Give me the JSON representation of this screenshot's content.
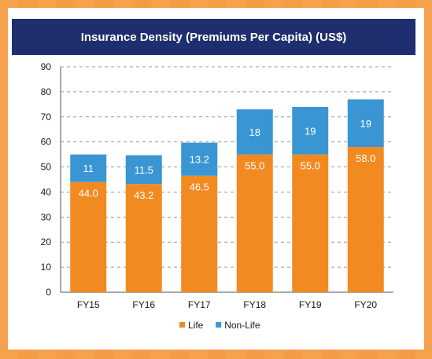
{
  "chart_data": {
    "type": "bar",
    "stacked": true,
    "title": "Insurance Density (Premiums Per Capita) (US$)",
    "categories": [
      "FY15",
      "FY16",
      "FY17",
      "FY18",
      "FY19",
      "FY20"
    ],
    "series": [
      {
        "name": "Life",
        "values": [
          44.0,
          43.2,
          46.5,
          55.0,
          55.0,
          58.0
        ],
        "labels": [
          "44.0",
          "43.2",
          "46.5",
          "55.0",
          "55.0",
          "58.0"
        ],
        "color": "#f28a22"
      },
      {
        "name": "Non-Life",
        "values": [
          11,
          11.5,
          13.2,
          18,
          19,
          19
        ],
        "labels": [
          "11",
          "11.5",
          "13.2",
          "18",
          "19",
          "19"
        ],
        "color": "#3a96d3"
      }
    ],
    "ylim": [
      0,
      90
    ],
    "yticks": [
      "0",
      "10",
      "20",
      "30",
      "40",
      "50",
      "60",
      "70",
      "80",
      "90"
    ],
    "grid": true,
    "legend": "bottom-center"
  }
}
